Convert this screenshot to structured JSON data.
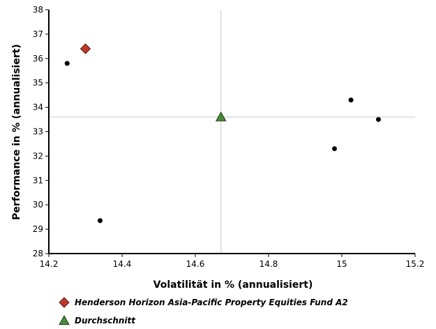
{
  "chart_data": {
    "type": "scatter",
    "xlabel": "Volatilität in % (annualisiert)",
    "ylabel": "Performance in % (annualisiert)",
    "xlim": [
      14.2,
      15.2
    ],
    "ylim": [
      28,
      38
    ],
    "x_ticks": [
      "14.2",
      "14.4",
      "14.6",
      "14.8",
      "15",
      "15.2"
    ],
    "y_ticks": [
      "28",
      "29",
      "30",
      "31",
      "32",
      "33",
      "34",
      "35",
      "36",
      "37",
      "38"
    ],
    "grid": false,
    "reference_lines": {
      "x": 14.67,
      "y": 33.6
    },
    "series": [
      {
        "marker": "circle",
        "color": "#000000",
        "points": [
          {
            "x": 14.25,
            "y": 35.8
          },
          {
            "x": 14.34,
            "y": 29.35
          },
          {
            "x": 14.98,
            "y": 32.3
          },
          {
            "x": 15.025,
            "y": 34.3
          },
          {
            "x": 15.1,
            "y": 33.5
          }
        ]
      },
      {
        "name": "Henderson Horizon Asia-Pacific Property Equities Fund A2",
        "marker": "diamond",
        "color": "#c0392b",
        "points": [
          {
            "x": 14.3,
            "y": 36.4
          }
        ]
      },
      {
        "name": "Durchschnitt",
        "marker": "triangle",
        "color": "#4a8a3a",
        "points": [
          {
            "x": 14.67,
            "y": 33.6
          }
        ]
      }
    ],
    "legend": {
      "placement": "bottom-left",
      "entries": [
        {
          "label": "Henderson Horizon Asia-Pacific Property Equities Fund A2",
          "marker": "diamond",
          "color": "#c0392b"
        },
        {
          "label": "Durchschnitt",
          "marker": "triangle",
          "color": "#4a8a3a"
        }
      ]
    }
  }
}
